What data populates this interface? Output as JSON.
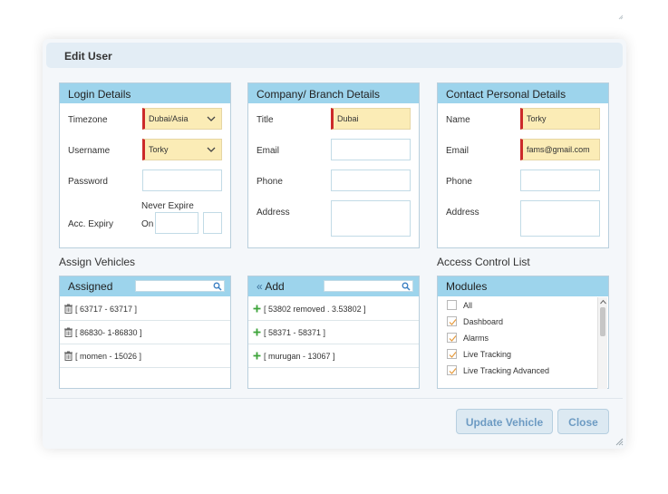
{
  "dialog": {
    "title": "Edit User"
  },
  "login": {
    "header": "Login Details",
    "timezone_label": "Timezone",
    "timezone_value": "Dubai/Asia",
    "username_label": "Username",
    "username_value": "Torky",
    "password_label": "Password",
    "never_expire": "Never Expire",
    "expiry_label": "Acc. Expiry",
    "on_label": "On"
  },
  "company": {
    "header": "Company/ Branch Details",
    "title_label": "Title",
    "title_value": "Dubai",
    "email_label": "Email",
    "phone_label": "Phone",
    "address_label": "Address"
  },
  "contact": {
    "header": "Contact Personal Details",
    "name_label": "Name",
    "name_value": "Torky",
    "email_label": "Email",
    "email_value": "fams@gmail.com",
    "phone_label": "Phone",
    "address_label": "Address"
  },
  "assign": {
    "title": "Assign Vehicles",
    "assigned_header": "Assigned",
    "assigned": [
      "[ 63717 - 63717 ]",
      "[ 86830- 1-86830 ]",
      "[ momen - 15026 ]"
    ],
    "add_header": "Add",
    "add_icon": "double-chevron-left-icon",
    "add_items": [
      "[ 53802 removed . 3.53802 ]",
      "[ 58371 - 58371 ]",
      "[ murugan - 13067 ]"
    ]
  },
  "acl": {
    "title": "Access Control List",
    "header": "Modules",
    "modules": [
      {
        "label": "All",
        "checked": false
      },
      {
        "label": "Dashboard",
        "checked": true
      },
      {
        "label": "Alarms",
        "checked": true
      },
      {
        "label": "Live Tracking",
        "checked": true
      },
      {
        "label": "Live Tracking Advanced",
        "checked": true
      }
    ]
  },
  "buttons": {
    "update": "Update Vehicle",
    "close": "Close"
  },
  "colors": {
    "header_bg": "#9dd4ec",
    "required_bg": "#fbecb6",
    "required_bar": "#cc2a2a",
    "button_text": "#6d9bc3"
  }
}
